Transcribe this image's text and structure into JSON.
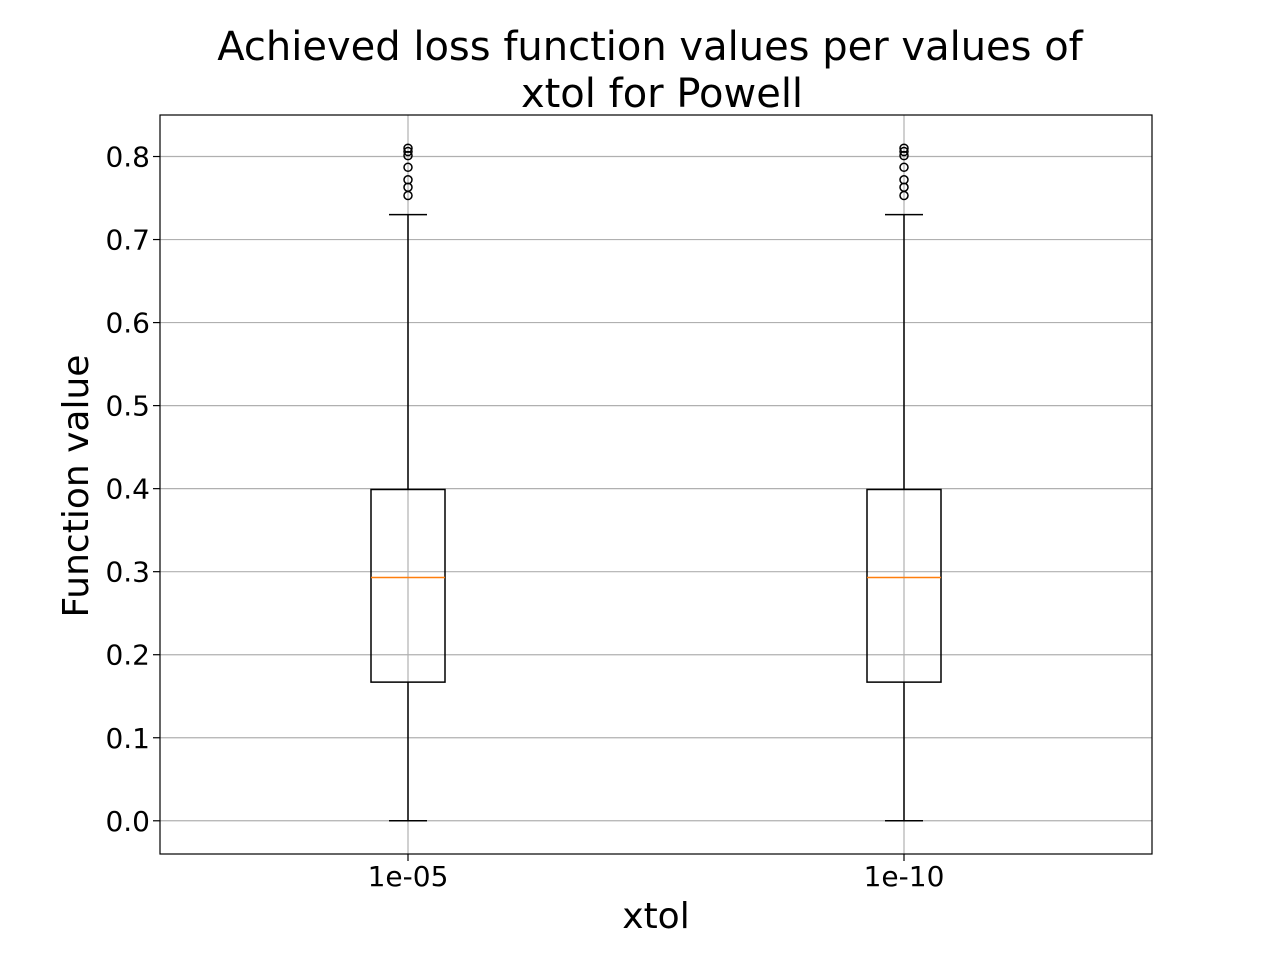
{
  "chart_data": {
    "type": "boxplot",
    "title_lines": [
      "Achieved loss function values per values of",
      "xtol for Powell"
    ],
    "xlabel": "xtol",
    "ylabel": "Function value",
    "ylim": [
      -0.04,
      0.85
    ],
    "yticks": [
      0.0,
      0.1,
      0.2,
      0.3,
      0.4,
      0.5,
      0.6,
      0.7,
      0.8
    ],
    "ytick_labels": [
      "0.0",
      "0.1",
      "0.2",
      "0.3",
      "0.4",
      "0.5",
      "0.6",
      "0.7",
      "0.8"
    ],
    "grid": true,
    "median_color": "#ff7f0e",
    "categories": [
      "1e-05",
      "1e-10"
    ],
    "boxes": [
      {
        "name": "1e-05",
        "whisker_low": 0.0,
        "q1": 0.167,
        "median": 0.293,
        "q3": 0.399,
        "whisker_high": 0.73,
        "fliers": [
          0.753,
          0.763,
          0.772,
          0.787,
          0.801,
          0.806,
          0.81
        ]
      },
      {
        "name": "1e-10",
        "whisker_low": 0.0,
        "q1": 0.167,
        "median": 0.293,
        "q3": 0.399,
        "whisker_high": 0.73,
        "fliers": [
          0.753,
          0.763,
          0.772,
          0.787,
          0.801,
          0.806,
          0.81
        ]
      }
    ]
  }
}
